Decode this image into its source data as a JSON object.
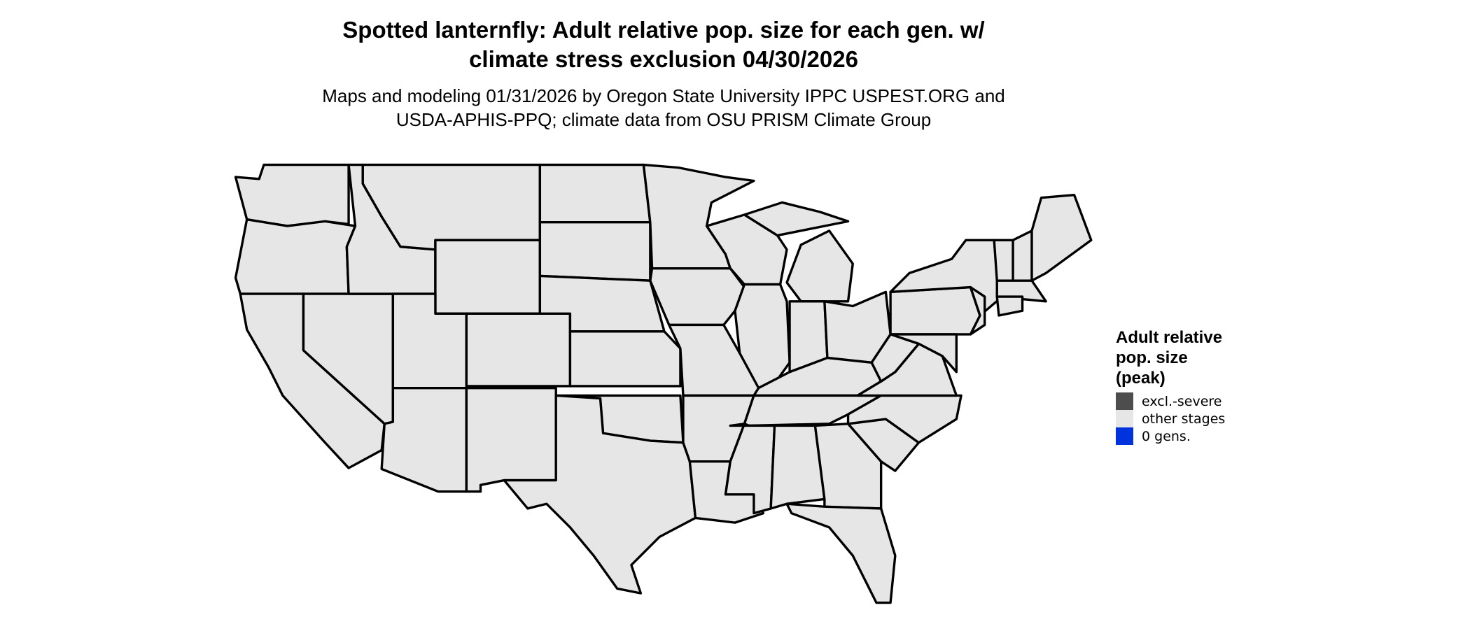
{
  "title": {
    "line1": "Spotted lanternfly: Adult relative pop. size for each gen. w/",
    "line2": "climate stress exclusion 04/30/2026"
  },
  "subtitle": {
    "line1": "Maps and modeling 01/31/2026 by Oregon State University IPPC USPEST.ORG and",
    "line2": "USDA-APHIS-PPQ; climate data from OSU PRISM Climate Group"
  },
  "map": {
    "region": "Contiguous United States",
    "fill_color": "#e6e6e6",
    "border_color": "#000000"
  },
  "legend": {
    "title_lines": [
      "Adult relative",
      "pop. size",
      "(peak)"
    ],
    "items": [
      {
        "label": "excl.-severe",
        "color": "#4d4d4d"
      },
      {
        "label": "other stages",
        "color": "#e6e6e6"
      },
      {
        "label": "0 gens.",
        "color": "#0033dd"
      }
    ]
  }
}
